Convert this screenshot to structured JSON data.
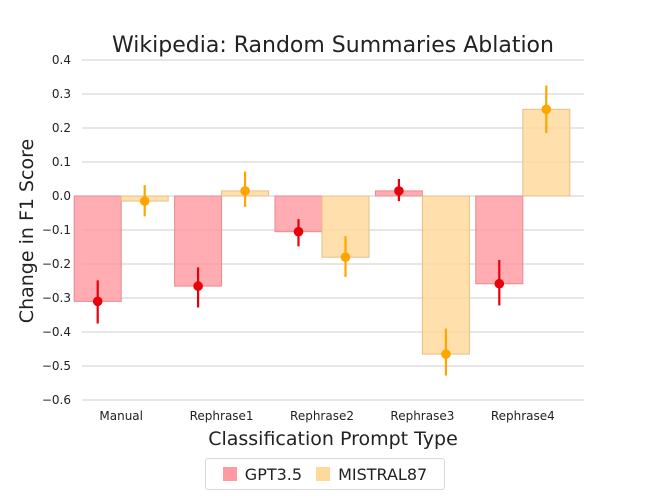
{
  "chart_data": {
    "type": "bar",
    "title": "Wikipedia: Random Summaries Ablation",
    "xlabel": "Classification Prompt Type",
    "ylabel": "Change in F1 Score",
    "categories": [
      "Manual",
      "Rephrase1",
      "Rephrase2",
      "Rephrase3",
      "Rephrase4"
    ],
    "ylim": [
      -0.6,
      0.4
    ],
    "yticks": [
      0.4,
      0.3,
      0.2,
      0.1,
      0.0,
      -0.1,
      -0.2,
      -0.3,
      -0.4,
      -0.5,
      -0.6
    ],
    "ytick_labels": [
      "0.4",
      "0.3",
      "0.2",
      "0.1",
      "0.0",
      "−0.1",
      "−0.2",
      "−0.3",
      "−0.4",
      "−0.5",
      "−0.6"
    ],
    "grid": true,
    "legend_position": "bottom-center",
    "series": [
      {
        "name": "GPT3.5",
        "values": [
          -0.31,
          -0.265,
          -0.105,
          0.015,
          -0.258
        ],
        "error_low": [
          -0.375,
          -0.328,
          -0.148,
          -0.015,
          -0.322
        ],
        "error_high": [
          -0.248,
          -0.21,
          -0.068,
          0.05,
          -0.188
        ],
        "bar_color": "#ff9aa2",
        "point_color": "#e8000b"
      },
      {
        "name": "MISTRAL87",
        "values": [
          -0.015,
          0.015,
          -0.18,
          -0.465,
          0.255
        ],
        "error_low": [
          -0.06,
          -0.032,
          -0.238,
          -0.528,
          0.185
        ],
        "error_high": [
          0.032,
          0.072,
          -0.118,
          -0.39,
          0.325
        ],
        "bar_color": "#ffd99a",
        "point_color": "#ffa500"
      }
    ]
  }
}
